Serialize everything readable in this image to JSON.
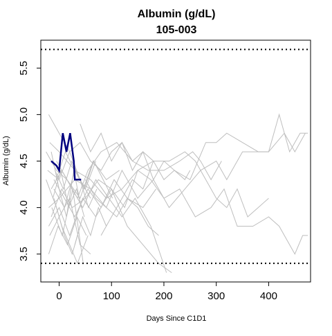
{
  "chart_data": {
    "type": "line",
    "title": "Albumin (g/dL)",
    "subtitle": "105-003",
    "xlabel": "Days Since C1D1",
    "ylabel": "Albumin (g/dL)",
    "xlim": [
      -35,
      480
    ],
    "ylim": [
      3.2,
      5.8
    ],
    "x_ticks": [
      0,
      100,
      200,
      300,
      400
    ],
    "x_tick_labels": [
      "0",
      "100",
      "200",
      "300",
      "400"
    ],
    "y_ticks": [
      3.5,
      4.0,
      4.5,
      5.0,
      5.5
    ],
    "y_tick_labels": [
      "3.5",
      "4.0",
      "4.5",
      "5.0",
      "5.5"
    ],
    "reference_lines": [
      3.4,
      5.7
    ],
    "grid": false,
    "colors": {
      "highlight": "#00007f",
      "background_series": "#bebebe",
      "reference": "#000000"
    },
    "highlight_series": {
      "x": [
        -15,
        -5,
        0,
        7,
        14,
        21,
        28,
        30,
        42
      ],
      "y": [
        4.5,
        4.45,
        4.4,
        4.8,
        4.6,
        4.8,
        4.5,
        4.3,
        4.3
      ]
    },
    "background_series": [
      {
        "x": [
          -20,
          0,
          20,
          40,
          60
        ],
        "y": [
          5.0,
          4.8,
          4.6,
          4.3,
          4.1
        ]
      },
      {
        "x": [
          -18,
          0,
          15,
          30,
          50,
          70
        ],
        "y": [
          4.7,
          4.6,
          4.5,
          4.4,
          4.2,
          4.5
        ]
      },
      {
        "x": [
          -15,
          0,
          14,
          28,
          42
        ],
        "y": [
          4.6,
          4.2,
          3.9,
          4.4,
          4.0
        ]
      },
      {
        "x": [
          -25,
          -5,
          10,
          25,
          40
        ],
        "y": [
          4.3,
          4.0,
          3.7,
          3.5,
          3.8
        ]
      },
      {
        "x": [
          -10,
          5,
          20,
          35,
          55
        ],
        "y": [
          4.1,
          3.8,
          3.6,
          3.4,
          3.7
        ]
      },
      {
        "x": [
          -22,
          0,
          20,
          40,
          60,
          80,
          100,
          120,
          140,
          160,
          180,
          200,
          220,
          250,
          280,
          300,
          320,
          350,
          380,
          400,
          430,
          450,
          470
        ],
        "y": [
          4.4,
          4.3,
          4.6,
          4.7,
          4.5,
          4.4,
          4.6,
          4.7,
          4.5,
          4.6,
          4.5,
          4.3,
          4.4,
          4.3,
          4.7,
          4.7,
          4.8,
          4.7,
          4.6,
          4.6,
          4.8,
          4.6,
          4.8
        ]
      },
      {
        "x": [
          -20,
          0,
          30,
          60,
          90,
          120,
          150,
          180,
          210,
          240,
          270,
          300,
          320,
          350,
          380,
          400,
          420,
          440,
          460,
          475
        ],
        "y": [
          4.0,
          4.1,
          4.3,
          4.2,
          4.0,
          4.4,
          4.1,
          4.3,
          4.0,
          4.2,
          4.4,
          4.5,
          4.3,
          4.6,
          4.6,
          4.6,
          5.0,
          4.6,
          4.8,
          4.8
        ]
      },
      {
        "x": [
          -15,
          5,
          25,
          50,
          75,
          100,
          125,
          150,
          175,
          200,
          230,
          260,
          290,
          315,
          340,
          370,
          400,
          420,
          450,
          465,
          475
        ],
        "y": [
          3.9,
          4.2,
          4.0,
          4.1,
          4.3,
          4.2,
          4.0,
          4.4,
          4.3,
          4.1,
          4.2,
          3.9,
          4.0,
          4.2,
          3.8,
          3.8,
          3.9,
          3.8,
          3.5,
          3.7,
          3.7
        ]
      },
      {
        "x": [
          -10,
          10,
          30,
          60,
          90,
          120,
          150,
          180,
          210,
          240,
          260,
          280,
          300,
          320,
          340,
          360,
          380,
          400
        ],
        "y": [
          4.2,
          4.0,
          4.4,
          4.3,
          4.1,
          4.2,
          4.4,
          4.5,
          4.5,
          4.6,
          4.5,
          4.3,
          4.1,
          4.0,
          4.2,
          3.9,
          4.0,
          4.1
        ]
      },
      {
        "x": [
          -5,
          15,
          35,
          55,
          80,
          110,
          140,
          170,
          200,
          230,
          255,
          270,
          290,
          310
        ],
        "y": [
          4.5,
          4.3,
          4.1,
          4.4,
          4.6,
          4.7,
          4.5,
          4.4,
          4.4,
          4.5,
          4.6,
          4.5,
          4.3,
          4.5
        ]
      },
      {
        "x": [
          -20,
          0,
          20,
          45,
          70,
          100,
          130,
          160,
          190,
          215
        ],
        "y": [
          3.8,
          4.0,
          3.7,
          4.1,
          3.9,
          4.2,
          3.8,
          3.6,
          3.4,
          3.3
        ]
      },
      {
        "x": [
          -15,
          5,
          25,
          45,
          70,
          95,
          120,
          145,
          175,
          205
        ],
        "y": [
          4.2,
          4.4,
          4.2,
          4.0,
          4.3,
          4.1,
          3.9,
          4.1,
          3.8,
          3.3
        ]
      },
      {
        "x": [
          -10,
          10,
          30,
          55,
          80,
          105,
          130,
          160,
          185
        ],
        "y": [
          4.3,
          4.1,
          3.9,
          4.2,
          4.0,
          4.3,
          4.1,
          4.0,
          4.2
        ]
      },
      {
        "x": [
          -25,
          -5,
          15,
          40,
          65,
          90,
          115
        ],
        "y": [
          4.6,
          4.4,
          4.3,
          4.1,
          4.5,
          4.3,
          4.4
        ]
      },
      {
        "x": [
          -18,
          0,
          20,
          40,
          60
        ],
        "y": [
          3.7,
          3.9,
          4.1,
          3.6,
          3.5
        ]
      },
      {
        "x": [
          -12,
          3,
          18,
          33,
          48
        ],
        "y": [
          4.1,
          4.4,
          4.0,
          4.2,
          3.9
        ]
      },
      {
        "x": [
          -8,
          8,
          24,
          40,
          56,
          72
        ],
        "y": [
          4.4,
          4.2,
          4.5,
          4.3,
          4.0,
          4.2
        ]
      },
      {
        "x": [
          -20,
          -2,
          16,
          34,
          52
        ],
        "y": [
          3.5,
          3.8,
          3.6,
          3.9,
          3.7
        ]
      },
      {
        "x": [
          -14,
          6,
          26,
          46
        ],
        "y": [
          4.0,
          3.7,
          4.2,
          3.4
        ]
      },
      {
        "x": [
          -6,
          12,
          30,
          48,
          66,
          84,
          102
        ],
        "y": [
          4.3,
          4.6,
          4.4,
          4.2,
          4.5,
          4.3,
          4.1
        ]
      },
      {
        "x": [
          40,
          60,
          80,
          100,
          120,
          140,
          160,
          180,
          200,
          220,
          240,
          250
        ],
        "y": [
          4.9,
          4.6,
          4.8,
          4.5,
          4.7,
          4.4,
          4.6,
          4.3,
          4.5,
          4.4,
          4.3,
          4.4
        ]
      },
      {
        "x": [
          50,
          70,
          90,
          110,
          130,
          150,
          170,
          190
        ],
        "y": [
          4.3,
          4.1,
          4.0,
          3.9,
          4.1,
          4.0,
          3.8,
          3.7
        ]
      },
      {
        "x": [
          80,
          100,
          120,
          140,
          160,
          180
        ],
        "y": [
          3.7,
          3.9,
          4.1,
          4.3,
          4.2,
          4.5
        ]
      },
      {
        "x": [
          30,
          45,
          60,
          75,
          90
        ],
        "y": [
          3.6,
          3.9,
          3.7,
          4.0,
          3.8
        ]
      }
    ]
  }
}
